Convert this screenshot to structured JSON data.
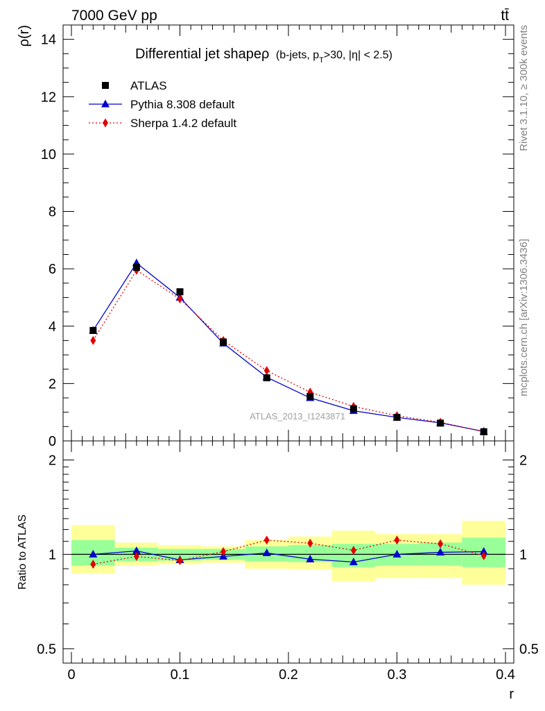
{
  "header": {
    "energy_label": "7000 GeV pp",
    "process_label": "tt̄",
    "side_label_top": "Rivet 3.1.10, ≥ 300k events",
    "side_label_bottom": "mcplots.cern.ch [arXiv:1306.3436]"
  },
  "chart_data": [
    {
      "type": "scatter",
      "panel": "main",
      "title": "Differential jet shapeρ",
      "subtitle": "(b-jets, p_T>30, |η| < 2.5)",
      "watermark": "ATLAS_2013_I1243871",
      "ylabel": "ρ(r)",
      "xlim": [
        0,
        0.4
      ],
      "ylim": [
        0,
        14.5
      ],
      "y_ticks": [
        0,
        2,
        4,
        6,
        8,
        10,
        12,
        14
      ],
      "legend_position": "top-left",
      "x": [
        0.02,
        0.06,
        0.1,
        0.14,
        0.18,
        0.22,
        0.26,
        0.3,
        0.34,
        0.38
      ],
      "series": [
        {
          "name": "ATLAS",
          "style": "data",
          "marker": "square",
          "color": "#000000",
          "values": [
            3.85,
            6.05,
            5.2,
            3.45,
            2.2,
            1.55,
            1.12,
            0.82,
            0.62,
            0.32
          ]
        },
        {
          "name": "Pythia 8.308 default",
          "style": "solid",
          "marker": "triangle",
          "color": "#0000cc",
          "values": [
            3.85,
            6.2,
            5.0,
            3.4,
            2.22,
            1.5,
            1.05,
            0.82,
            0.63,
            0.33
          ]
        },
        {
          "name": "Sherpa 1.4.2 default",
          "style": "dotted",
          "marker": "diamond",
          "color": "#e00000",
          "values": [
            3.5,
            5.95,
            4.95,
            3.5,
            2.45,
            1.7,
            1.2,
            0.88,
            0.65,
            0.32
          ]
        }
      ]
    },
    {
      "type": "line",
      "panel": "ratio",
      "xlabel": "r",
      "ylabel": "Ratio to ATLAS",
      "xlim": [
        0,
        0.4
      ],
      "ylim": [
        0.45,
        2.3
      ],
      "y_scale": "log",
      "x_ticks": [
        0,
        0.1,
        0.2,
        0.3,
        0.4
      ],
      "x_tick_labels": [
        "0",
        "0.1",
        "0.2",
        "0.3",
        "0.4"
      ],
      "y_ticks": [
        0.5,
        1,
        2
      ],
      "y_tick_labels": [
        "0.5",
        "1",
        "2"
      ],
      "x": [
        0.02,
        0.06,
        0.1,
        0.14,
        0.18,
        0.22,
        0.26,
        0.3,
        0.34,
        0.38
      ],
      "bins": [
        [
          0.0,
          0.04
        ],
        [
          0.04,
          0.08
        ],
        [
          0.08,
          0.12
        ],
        [
          0.12,
          0.16
        ],
        [
          0.16,
          0.2
        ],
        [
          0.2,
          0.24
        ],
        [
          0.24,
          0.28
        ],
        [
          0.28,
          0.32
        ],
        [
          0.32,
          0.36
        ],
        [
          0.36,
          0.4
        ]
      ],
      "band_total": [
        [
          0.87,
          1.24
        ],
        [
          0.92,
          1.09
        ],
        [
          0.93,
          1.07
        ],
        [
          0.94,
          1.06
        ],
        [
          0.9,
          1.11
        ],
        [
          0.895,
          1.14
        ],
        [
          0.82,
          1.19
        ],
        [
          0.84,
          1.16
        ],
        [
          0.84,
          1.16
        ],
        [
          0.8,
          1.28
        ]
      ],
      "band_stat": [
        [
          0.92,
          1.11
        ],
        [
          0.95,
          1.05
        ],
        [
          0.955,
          1.04
        ],
        [
          0.96,
          1.04
        ],
        [
          0.95,
          1.06
        ],
        [
          0.945,
          1.07
        ],
        [
          0.91,
          1.08
        ],
        [
          0.92,
          1.08
        ],
        [
          0.92,
          1.09
        ],
        [
          0.91,
          1.13
        ]
      ],
      "series": [
        {
          "name": "Pythia 8.308 default",
          "style": "solid",
          "marker": "triangle",
          "color": "#0000cc",
          "values": [
            1.0,
            1.025,
            0.96,
            0.985,
            1.01,
            0.965,
            0.945,
            1.0,
            1.015,
            1.02
          ]
        },
        {
          "name": "Sherpa 1.4.2 default",
          "style": "dotted",
          "marker": "diamond",
          "color": "#e00000",
          "values": [
            0.93,
            0.985,
            0.955,
            1.02,
            1.11,
            1.085,
            1.03,
            1.11,
            1.08,
            0.99
          ]
        }
      ]
    }
  ],
  "colors": {
    "band_total": "#ffff99",
    "band_stat": "#99ff99",
    "data": "#000000",
    "pythia": "#0000cc",
    "sherpa": "#e00000"
  }
}
